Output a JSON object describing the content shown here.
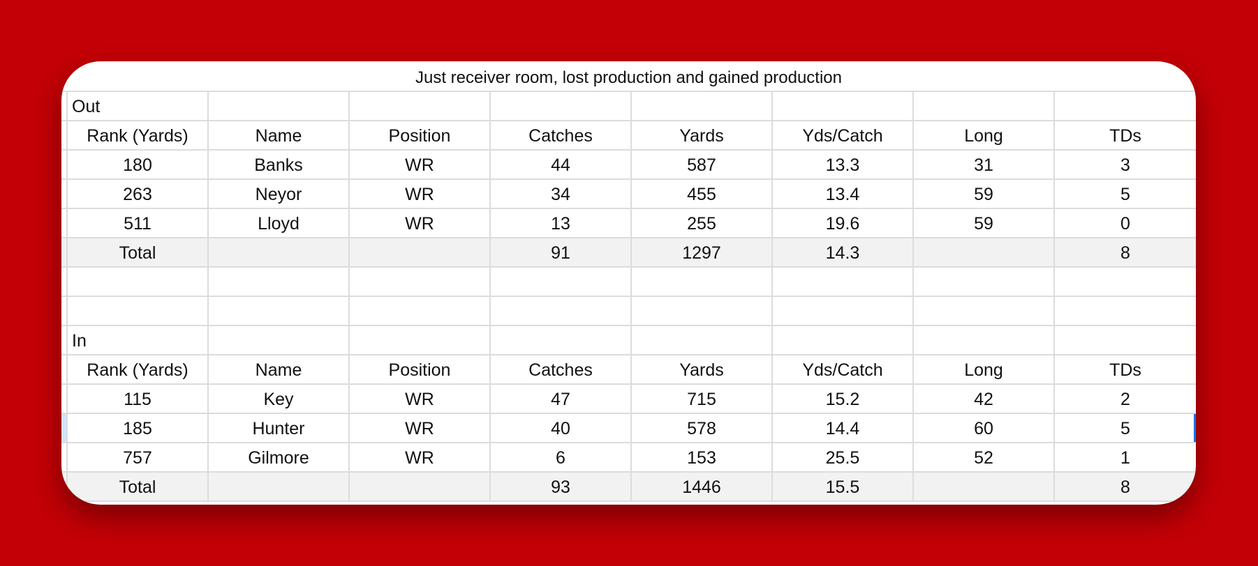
{
  "title": "Just receiver room, lost production and gained production",
  "headers": [
    "Rank (Yards)",
    "Name",
    "Position",
    "Catches",
    "Yards",
    "Yds/Catch",
    "Long",
    "TDs"
  ],
  "out": {
    "label": "Out",
    "rows": [
      [
        "180",
        "Banks",
        "WR",
        "44",
        "587",
        "13.3",
        "31",
        "3"
      ],
      [
        "263",
        "Neyor",
        "WR",
        "34",
        "455",
        "13.4",
        "59",
        "5"
      ],
      [
        "511",
        "Lloyd",
        "WR",
        "13",
        "255",
        "19.6",
        "59",
        "0"
      ]
    ],
    "total": [
      "Total",
      "",
      "",
      "91",
      "1297",
      "14.3",
      "",
      "8"
    ]
  },
  "in": {
    "label": "In",
    "rows": [
      [
        "115",
        "Key",
        "WR",
        "47",
        "715",
        "15.2",
        "42",
        "2"
      ],
      [
        "185",
        "Hunter",
        "WR",
        "40",
        "578",
        "14.4",
        "60",
        "5"
      ],
      [
        "757",
        "Gilmore",
        "WR",
        "6",
        "153",
        "25.5",
        "52",
        "1"
      ]
    ],
    "total": [
      "Total",
      "",
      "",
      "93",
      "1446",
      "15.5",
      "",
      "8"
    ]
  },
  "colors": {
    "background": "#c30006",
    "selection": "#1a73e8"
  }
}
